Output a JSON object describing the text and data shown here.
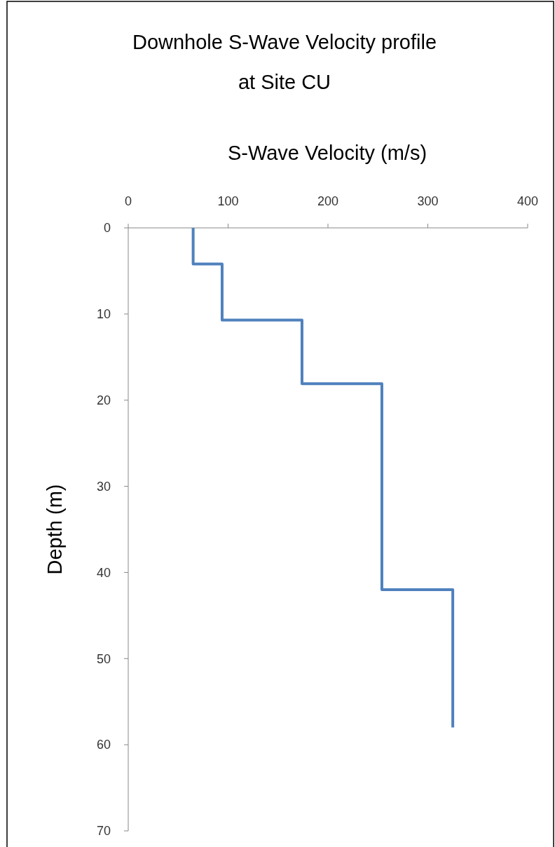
{
  "chart_data": {
    "type": "line",
    "title": "Downhole S-Wave Velocity profile at Site CU",
    "xlabel": "S-Wave Velocity (m/s)",
    "ylabel": "Depth (m)",
    "xlim": [
      0,
      400
    ],
    "xticks": [
      0,
      100,
      200,
      300,
      400
    ],
    "ylim": [
      70,
      0
    ],
    "yticks": [
      0,
      10,
      20,
      30,
      40,
      50,
      60,
      70
    ],
    "marker": "none",
    "line_style": "solid",
    "series": [
      {
        "color": "#4f81bd",
        "x": [
          65,
          65,
          94,
          94,
          174,
          174,
          254,
          254,
          325,
          325
        ],
        "values": [
          0,
          4.2,
          4.2,
          10.7,
          10.7,
          18.1,
          18.1,
          42,
          42,
          58
        ]
      }
    ]
  }
}
